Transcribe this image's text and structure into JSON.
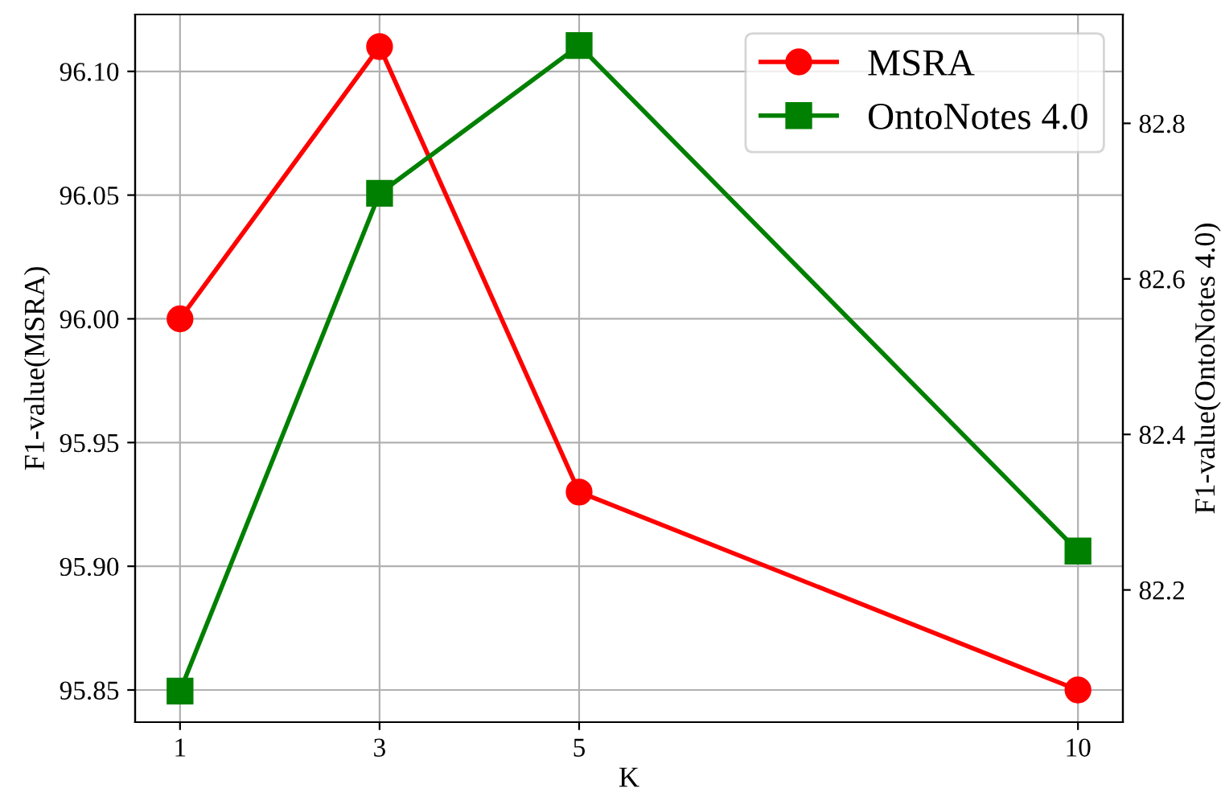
{
  "chart_data": {
    "type": "line",
    "xlabel": "K",
    "ylabel": "F1-value(MSRA)",
    "y2label": "F1-value(OntoNotes 4.0)",
    "x": [
      1,
      3,
      5,
      10
    ],
    "xlim": [
      0.55,
      10.45
    ],
    "xticks": [
      1,
      3,
      5,
      10
    ],
    "ylim": [
      95.837,
      96.123
    ],
    "yticks": [
      {
        "value": 95.85,
        "label": "95.85"
      },
      {
        "value": 95.9,
        "label": "95.90"
      },
      {
        "value": 95.95,
        "label": "95.95"
      },
      {
        "value": 96.0,
        "label": "96.00"
      },
      {
        "value": 96.05,
        "label": "96.05"
      },
      {
        "value": 96.1,
        "label": "96.10"
      }
    ],
    "y2lim": [
      82.03,
      82.94
    ],
    "y2ticks": [
      82.2,
      82.4,
      82.6,
      82.8
    ],
    "grid": true,
    "legend": "top right",
    "line_style": "solid",
    "series": [
      {
        "name": "MSRA",
        "color": "#ff0000",
        "marker": "circle",
        "values": [
          96.0,
          96.11,
          95.93,
          95.85
        ]
      },
      {
        "name": "OntoNotes 4.0",
        "color": "#008000",
        "marker": "square",
        "axis": "y2",
        "values": [
          82.07,
          82.71,
          82.9,
          82.25
        ]
      }
    ]
  }
}
